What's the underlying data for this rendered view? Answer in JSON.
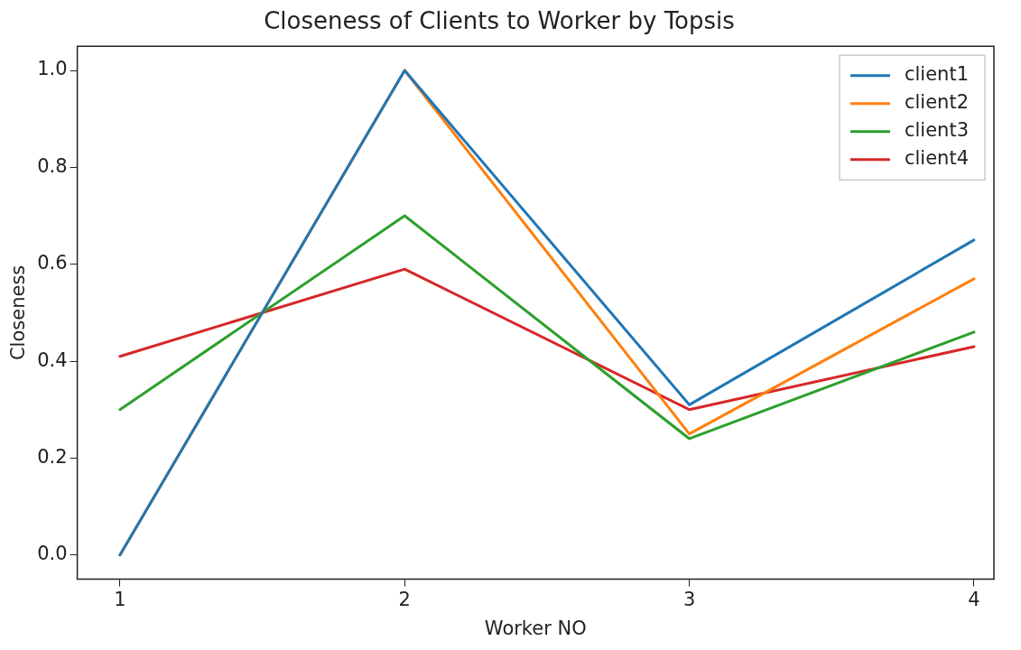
{
  "chart_data": {
    "type": "line",
    "title": "Closeness of Clients to Worker by Topsis",
    "xlabel": "Worker NO",
    "ylabel": "Closeness",
    "x": [
      1,
      2,
      3,
      4
    ],
    "series": [
      {
        "name": "client1",
        "color": "#1f77b4",
        "values": [
          0.0,
          1.0,
          0.31,
          0.65
        ]
      },
      {
        "name": "client2",
        "color": "#ff7f0e",
        "values": [
          0.0,
          1.0,
          0.25,
          0.57
        ]
      },
      {
        "name": "client3",
        "color": "#2ca02c",
        "values": [
          0.3,
          0.7,
          0.24,
          0.46
        ]
      },
      {
        "name": "client4",
        "color": "#d62728",
        "values": [
          0.41,
          0.59,
          0.3,
          0.43
        ]
      }
    ],
    "xlim": [
      0.85,
      4.07
    ],
    "xticks": [
      1,
      2,
      3,
      4
    ],
    "ylim": [
      -0.05,
      1.05
    ],
    "yticks": [
      {
        "value": 0,
        "label": "0.0"
      },
      {
        "value": 0.2,
        "label": "0.2"
      },
      {
        "value": 0.4,
        "label": "0.4"
      },
      {
        "value": 0.6,
        "label": "0.6"
      },
      {
        "value": 0.8,
        "label": "0.8"
      },
      {
        "value": 1,
        "label": "1.0"
      }
    ],
    "grid": false,
    "legend": "top right",
    "marker": "none",
    "line_style": "solid"
  }
}
